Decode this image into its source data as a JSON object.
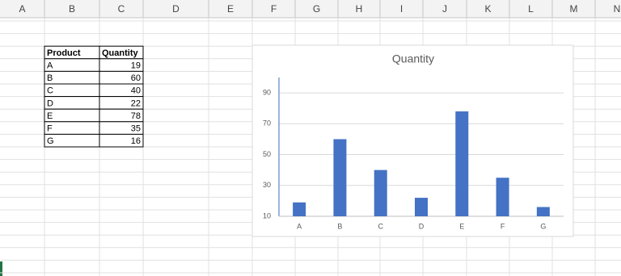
{
  "sheet": {
    "columns": [
      "A",
      "B",
      "C",
      "D",
      "E",
      "F",
      "G",
      "H",
      "I",
      "J",
      "K",
      "L",
      "M",
      "N"
    ]
  },
  "table": {
    "header": [
      "Product",
      "Quantity"
    ],
    "rows": [
      [
        "A",
        19
      ],
      [
        "B",
        60
      ],
      [
        "C",
        40
      ],
      [
        "D",
        22
      ],
      [
        "E",
        78
      ],
      [
        "F",
        35
      ],
      [
        "G",
        16
      ]
    ]
  },
  "chart_data": {
    "type": "bar",
    "title": "Quantity",
    "categories": [
      "A",
      "B",
      "C",
      "D",
      "E",
      "F",
      "G"
    ],
    "values": [
      19,
      60,
      40,
      22,
      78,
      35,
      16
    ],
    "color": "#4472c4",
    "ylim": [
      10,
      100
    ],
    "yticks": [
      10,
      30,
      50,
      70,
      90
    ],
    "grid": true
  }
}
